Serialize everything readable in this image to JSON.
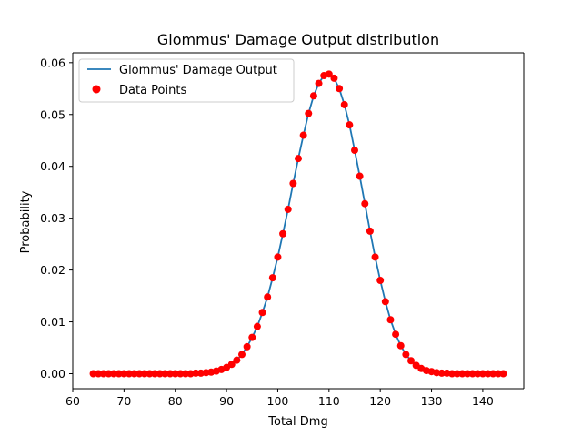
{
  "chart_data": {
    "type": "line",
    "title": "Glommus' Damage Output distribution",
    "xlabel": "Total Dmg",
    "ylabel": "Probability",
    "xlim": [
      60,
      148
    ],
    "ylim": [
      -0.0029,
      0.0619
    ],
    "xticks": [
      60,
      70,
      80,
      90,
      100,
      110,
      120,
      130,
      140
    ],
    "xtick_labels": [
      "60",
      "70",
      "80",
      "90",
      "100",
      "110",
      "120",
      "130",
      "140"
    ],
    "yticks": [
      0.0,
      0.01,
      0.02,
      0.03,
      0.04,
      0.05,
      0.06
    ],
    "ytick_labels": [
      "0.00",
      "0.01",
      "0.02",
      "0.03",
      "0.04",
      "0.05",
      "0.06"
    ],
    "grid": false,
    "legend_position": "top-left",
    "legend": [
      {
        "label": "Glommus' Damage Output",
        "kind": "line",
        "color": "#1f77b4"
      },
      {
        "label": "Data Points",
        "kind": "scatter",
        "color": "#ff0000"
      }
    ],
    "x": [
      64,
      65,
      66,
      67,
      68,
      69,
      70,
      71,
      72,
      73,
      74,
      75,
      76,
      77,
      78,
      79,
      80,
      81,
      82,
      83,
      84,
      85,
      86,
      87,
      88,
      89,
      90,
      91,
      92,
      93,
      94,
      95,
      96,
      97,
      98,
      99,
      100,
      101,
      102,
      103,
      104,
      105,
      106,
      107,
      108,
      109,
      110,
      111,
      112,
      113,
      114,
      115,
      116,
      117,
      118,
      119,
      120,
      121,
      122,
      123,
      124,
      125,
      126,
      127,
      128,
      129,
      130,
      131,
      132,
      133,
      134,
      135,
      136,
      137,
      138,
      139,
      140,
      141,
      142,
      143,
      144
    ],
    "series": [
      {
        "name": "Glommus' Damage Output",
        "style": "line",
        "color": "#1f77b4",
        "values": [
          0,
          0,
          0,
          0,
          0,
          0,
          0,
          0,
          0,
          0,
          0,
          0,
          0,
          0,
          0,
          0,
          0,
          0,
          0,
          0,
          0.0001,
          0.0001,
          0.0002,
          0.0003,
          0.0005,
          0.0008,
          0.0012,
          0.0018,
          0.0026,
          0.0037,
          0.0052,
          0.007,
          0.0091,
          0.0118,
          0.0148,
          0.0185,
          0.0225,
          0.027,
          0.0317,
          0.0367,
          0.0415,
          0.046,
          0.0502,
          0.0536,
          0.056,
          0.0575,
          0.0578,
          0.057,
          0.055,
          0.0519,
          0.048,
          0.0431,
          0.0381,
          0.0328,
          0.0275,
          0.0225,
          0.018,
          0.0139,
          0.0104,
          0.0076,
          0.0054,
          0.0037,
          0.0025,
          0.0016,
          0.001,
          0.0006,
          0.0004,
          0.0002,
          0.0001,
          0.0001,
          0,
          0,
          0,
          0,
          0,
          0,
          0,
          0,
          0,
          0,
          0
        ]
      },
      {
        "name": "Data Points",
        "style": "scatter",
        "color": "#ff0000",
        "values": [
          0,
          0,
          0,
          0,
          0,
          0,
          0,
          0,
          0,
          0,
          0,
          0,
          0,
          0,
          0,
          0,
          0,
          0,
          0,
          0,
          0.0001,
          0.0001,
          0.0002,
          0.0003,
          0.0005,
          0.0008,
          0.0012,
          0.0018,
          0.0026,
          0.0037,
          0.0052,
          0.007,
          0.0091,
          0.0118,
          0.0148,
          0.0185,
          0.0225,
          0.027,
          0.0317,
          0.0367,
          0.0415,
          0.046,
          0.0502,
          0.0536,
          0.056,
          0.0575,
          0.0578,
          0.057,
          0.055,
          0.0519,
          0.048,
          0.0431,
          0.0381,
          0.0328,
          0.0275,
          0.0225,
          0.018,
          0.0139,
          0.0104,
          0.0076,
          0.0054,
          0.0037,
          0.0025,
          0.0016,
          0.001,
          0.0006,
          0.0004,
          0.0002,
          0.0001,
          0.0001,
          0,
          0,
          0,
          0,
          0,
          0,
          0,
          0,
          0,
          0,
          0
        ]
      }
    ]
  }
}
